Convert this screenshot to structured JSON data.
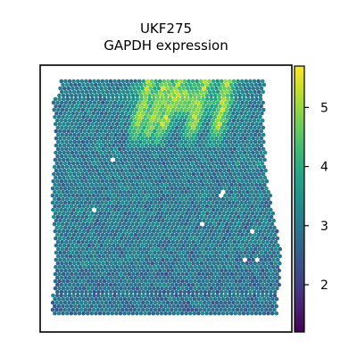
{
  "chart_data": {
    "type": "heatmap",
    "title_lines": [
      "UKF275",
      "GAPDH expression"
    ],
    "xlabel": "",
    "ylabel": "",
    "colorbar": {
      "colormap": "viridis",
      "vmin": 1.2,
      "vmax": 5.7,
      "ticks": [
        2,
        3,
        4,
        5
      ],
      "tick_labels": [
        "2",
        "3",
        "4",
        "5"
      ]
    },
    "background_level": 3.0,
    "high_expression_region": {
      "location": "top-center",
      "level_range": [
        4.8,
        5.7
      ]
    },
    "missing_spots_color": "#ffffff",
    "axes_ticks_visible": false,
    "grid": false
  }
}
